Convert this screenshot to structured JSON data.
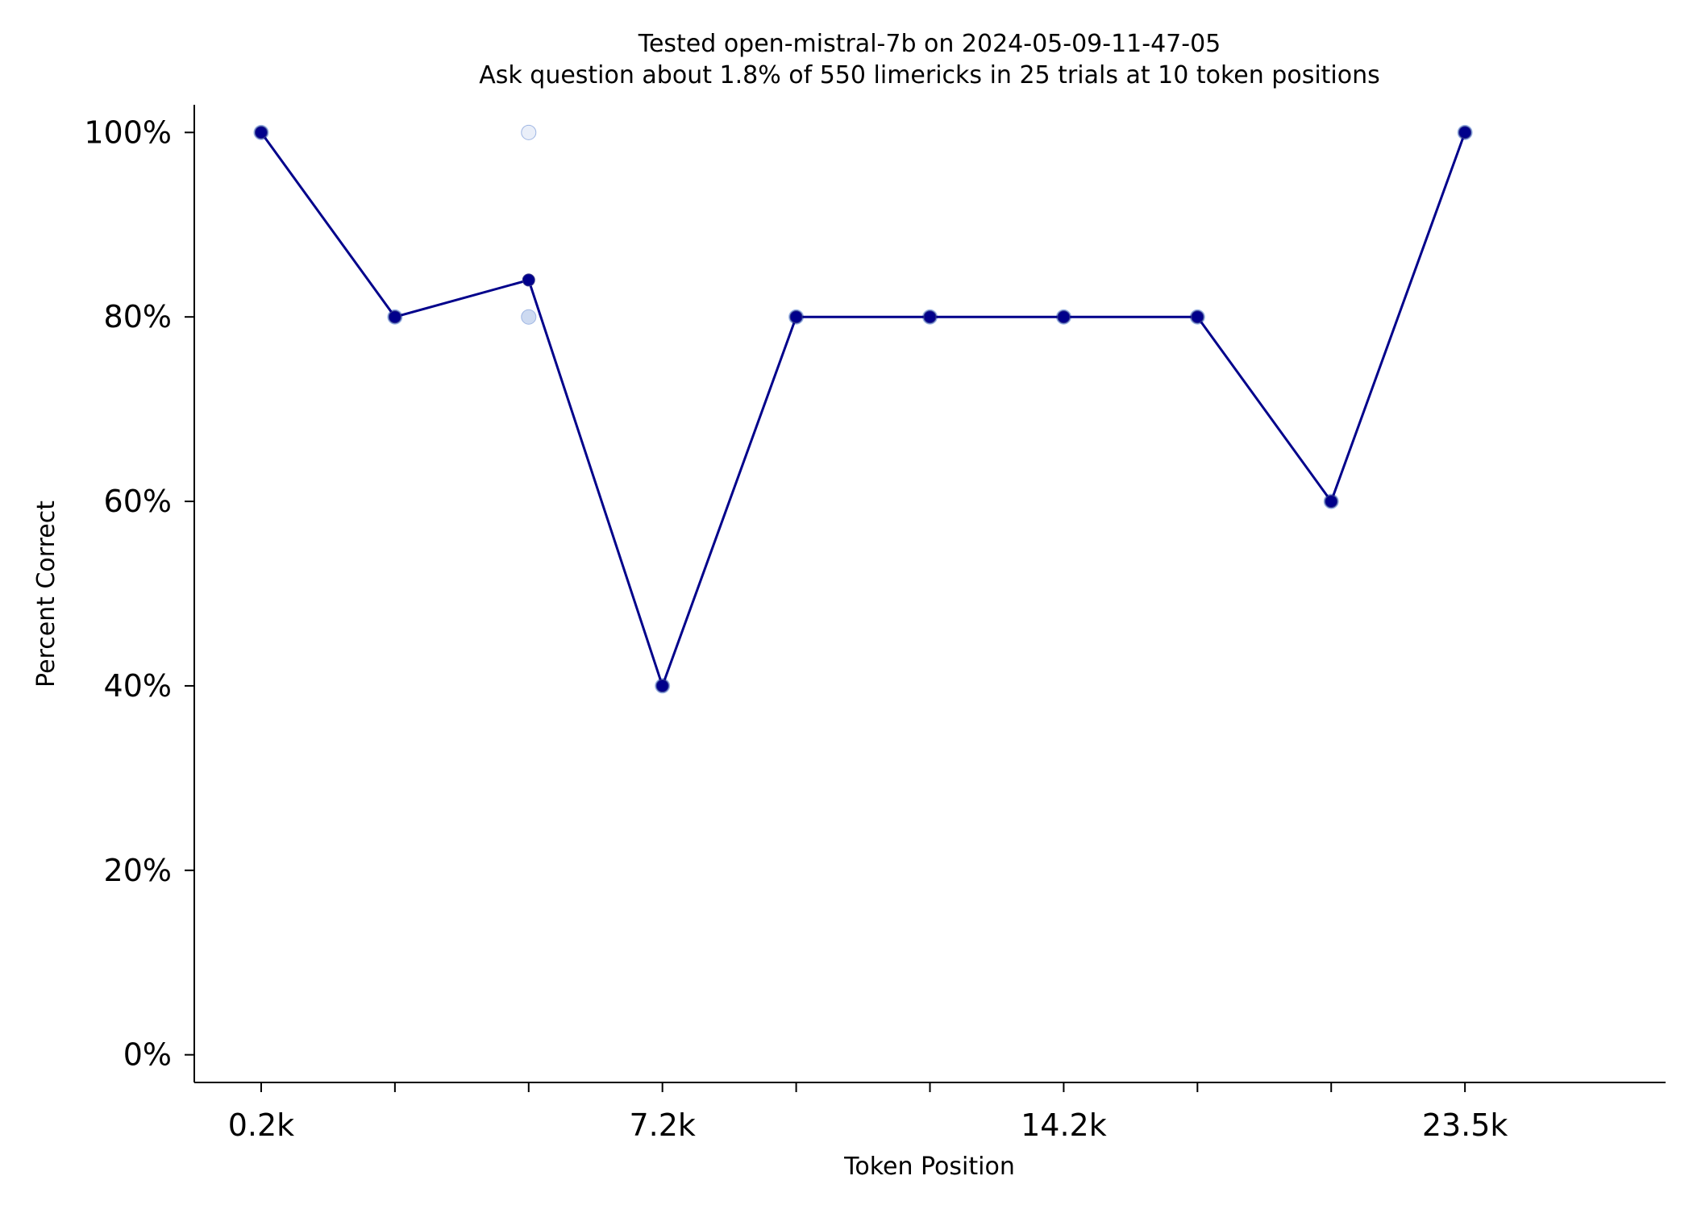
{
  "chart_data": {
    "type": "line",
    "title": "Tested open-mistral-7b on 2024-05-09-11-47-05",
    "subtitle": "Ask question about 1.8% of 550 limericks in 25 trials at 10 token positions",
    "xlabel": "Token Position",
    "ylabel": "Percent Correct",
    "x_positions": [
      0,
      1,
      2,
      3,
      4,
      5,
      6,
      7,
      8,
      9
    ],
    "x_tick_labels": [
      "0.2k",
      "",
      "",
      "7.2k",
      "",
      "",
      "14.2k",
      "",
      "",
      "23.5k"
    ],
    "y_ticks": [
      0,
      20,
      40,
      60,
      80,
      100
    ],
    "y_tick_labels": [
      "0%",
      "20%",
      "40%",
      "60%",
      "80%",
      "100%"
    ],
    "ylim": [
      -3,
      103
    ],
    "xlim": [
      -0.5,
      10.5
    ],
    "grid": false,
    "series": [
      {
        "values": [
          100,
          80,
          84,
          40,
          80,
          80,
          80,
          80,
          60,
          100
        ],
        "color": "#00008b",
        "marker": "circle"
      }
    ],
    "trial_points": [
      {
        "x": 0,
        "y": 100,
        "opacity": 0.9
      },
      {
        "x": 1,
        "y": 80,
        "opacity": 0.9
      },
      {
        "x": 2,
        "y": 100,
        "opacity": 0.15
      },
      {
        "x": 2,
        "y": 80,
        "opacity": 0.35
      },
      {
        "x": 3,
        "y": 40,
        "opacity": 0.9
      },
      {
        "x": 4,
        "y": 80,
        "opacity": 0.9
      },
      {
        "x": 5,
        "y": 80,
        "opacity": 0.9
      },
      {
        "x": 6,
        "y": 80,
        "opacity": 0.9
      },
      {
        "x": 7,
        "y": 80,
        "opacity": 0.9
      },
      {
        "x": 8,
        "y": 60,
        "opacity": 0.9
      },
      {
        "x": 9,
        "y": 100,
        "opacity": 0.9
      }
    ],
    "trial_point_color": "#6f95d8"
  }
}
